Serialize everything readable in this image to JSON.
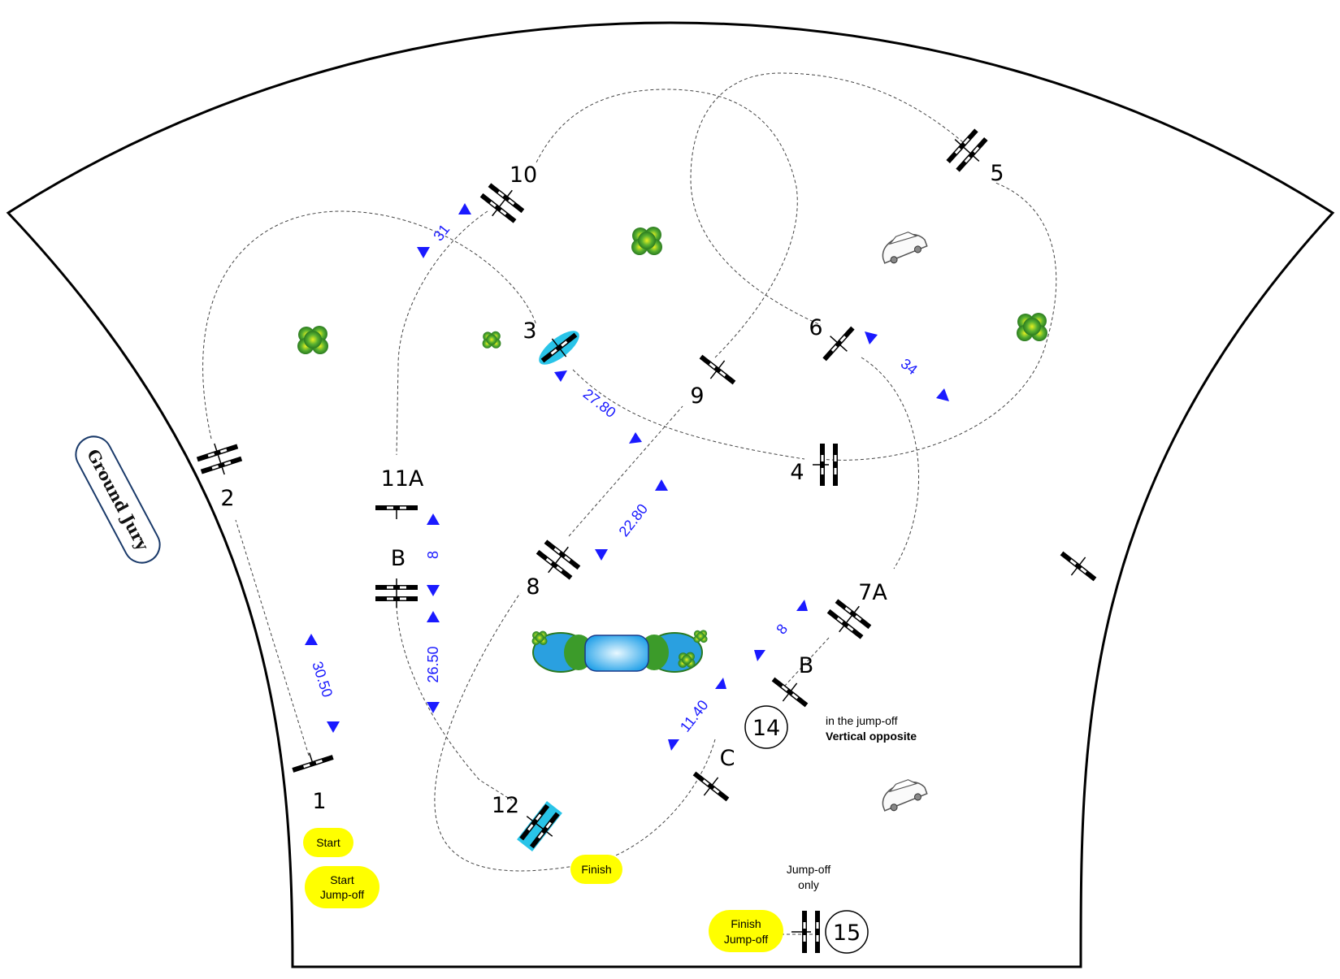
{
  "jury": {
    "label": "Ground Jury"
  },
  "fences": [
    {
      "id": "f1",
      "label": "1"
    },
    {
      "id": "f2",
      "label": "2"
    },
    {
      "id": "f3",
      "label": "3"
    },
    {
      "id": "f4",
      "label": "4"
    },
    {
      "id": "f5",
      "label": "5"
    },
    {
      "id": "f6",
      "label": "6"
    },
    {
      "id": "f7a",
      "label": "7A"
    },
    {
      "id": "f7b",
      "label": "B"
    },
    {
      "id": "f7c",
      "label": "C"
    },
    {
      "id": "f8",
      "label": "8"
    },
    {
      "id": "f9",
      "label": "9"
    },
    {
      "id": "f10",
      "label": "10"
    },
    {
      "id": "f11a",
      "label": "11A"
    },
    {
      "id": "f11b",
      "label": "B"
    },
    {
      "id": "f12",
      "label": "12"
    }
  ],
  "jumpoff_fences": [
    {
      "id": "f14",
      "label": "14"
    },
    {
      "id": "f15",
      "label": "15"
    }
  ],
  "distances": [
    "31",
    "27.80",
    "22.80",
    "34",
    "8",
    "26.50",
    "30.50",
    "8",
    "11.40"
  ],
  "markers": {
    "start": "Start",
    "start_jumpoff_1": "Start",
    "start_jumpoff_2": "Jump-off",
    "finish": "Finish",
    "finish_jumpoff_1": "Finish",
    "finish_jumpoff_2": "Jump-off"
  },
  "notes": {
    "jumpoff_only_1": "Jump-off",
    "jumpoff_only_2": "only",
    "jumpoff_note_1": "in the jump-off",
    "jumpoff_note_2": "Vertical  opposite"
  },
  "colors": {
    "arena_line": "#000000",
    "distance": "#1a1aff",
    "marker": "#ffff00",
    "water": "#29c4e8",
    "shrub": "#3c9b2a"
  }
}
